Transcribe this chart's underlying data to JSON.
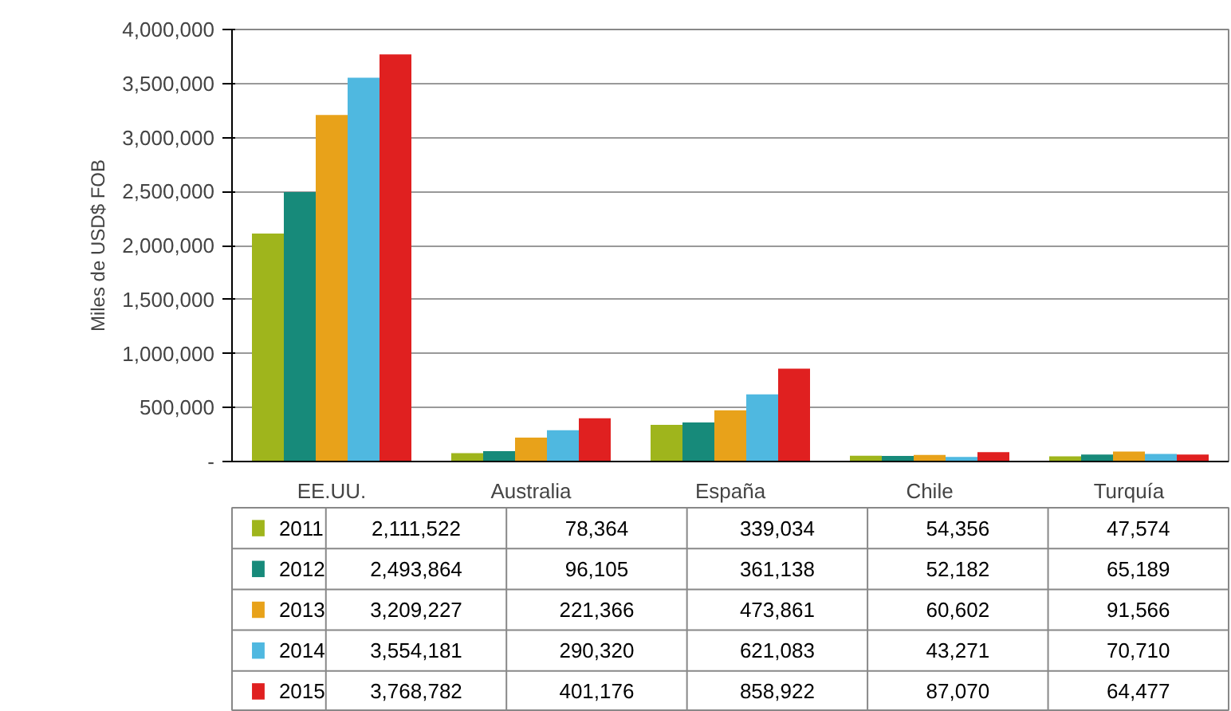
{
  "chart_data": {
    "type": "bar",
    "ylabel": "Miles de USD$ FOB",
    "categories": [
      "EE.UU.",
      "Australia",
      "España",
      "Chile",
      "Turquía"
    ],
    "series": [
      {
        "name": "2011",
        "color": "#9fb51c",
        "values": [
          2111522,
          78364,
          339034,
          54356,
          47574
        ],
        "value_labels": [
          "2,111,522",
          "78,364",
          "339,034",
          "54,356",
          "47,574"
        ]
      },
      {
        "name": "2012",
        "color": "#178a7a",
        "values": [
          2493864,
          96105,
          361138,
          52182,
          65189
        ],
        "value_labels": [
          "2,493,864",
          "96,105",
          "361,138",
          "52,182",
          "65,189"
        ]
      },
      {
        "name": "2013",
        "color": "#e8a21a",
        "values": [
          3209227,
          221366,
          473861,
          60602,
          91566
        ],
        "value_labels": [
          "3,209,227",
          "221,366",
          "473,861",
          "60,602",
          "91,566"
        ]
      },
      {
        "name": "2014",
        "color": "#4fb8e0",
        "values": [
          3554181,
          290320,
          621083,
          43271,
          70710
        ],
        "value_labels": [
          "3,554,181",
          "290,320",
          "621,083",
          "43,271",
          "70,710"
        ]
      },
      {
        "name": "2015",
        "color": "#e02020",
        "values": [
          3768782,
          401176,
          858922,
          87070,
          64477
        ],
        "value_labels": [
          "3,768,782",
          "401,176",
          "858,922",
          "87,070",
          "64,477"
        ]
      }
    ],
    "ylim": [
      0,
      4000000
    ],
    "yticks": [
      {
        "value": 0,
        "label": "-"
      },
      {
        "value": 500000,
        "label": "500,000"
      },
      {
        "value": 1000000,
        "label": "1,000,000"
      },
      {
        "value": 1500000,
        "label": "1,500,000"
      },
      {
        "value": 2000000,
        "label": "2,000,000"
      },
      {
        "value": 2500000,
        "label": "2,500,000"
      },
      {
        "value": 3000000,
        "label": "3,000,000"
      },
      {
        "value": 3500000,
        "label": "3,500,000"
      },
      {
        "value": 4000000,
        "label": "4,000,000"
      }
    ],
    "grid": "y",
    "legend": "bottom"
  }
}
